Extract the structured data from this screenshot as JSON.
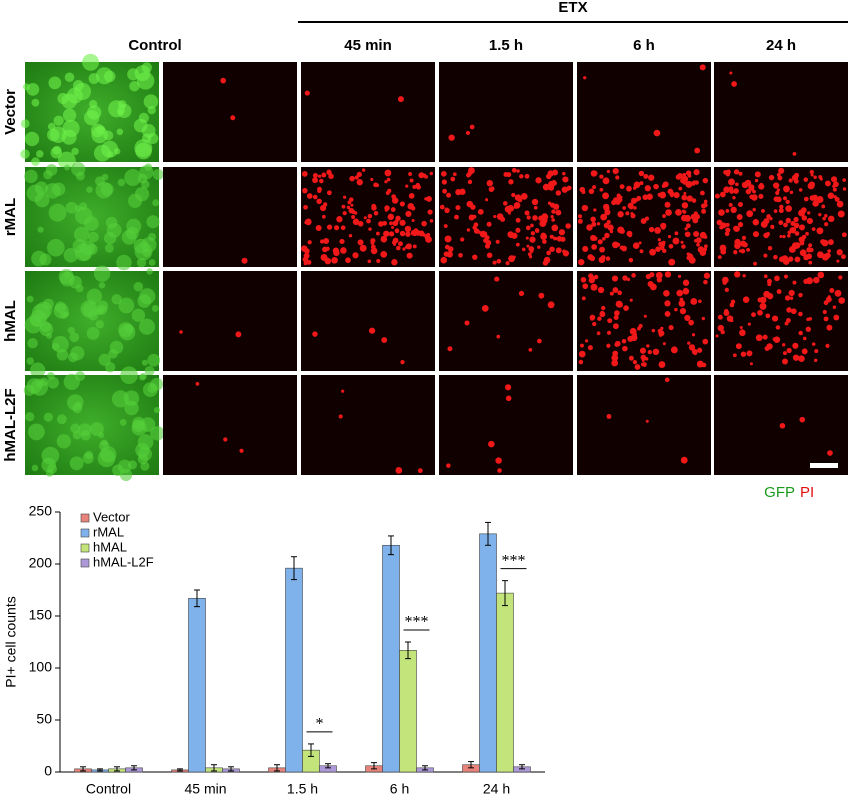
{
  "figure": {
    "treatment_label": "ETX",
    "columns": [
      "Control",
      "45 min",
      "1.5 h",
      "6 h",
      "24 h"
    ],
    "rows": [
      "Vector",
      "rMAL",
      "hMAL",
      "hMAL-L2F"
    ],
    "channel_labels": [
      {
        "text": "GFP",
        "color": "#1a9a1a"
      },
      {
        "text": "PI",
        "color": "#e01010"
      }
    ]
  },
  "chart_data": {
    "type": "bar",
    "ylabel": "PI+ cell counts",
    "categories": [
      "Control",
      "45 min",
      "1.5 h",
      "6 h",
      "24 h"
    ],
    "series": [
      {
        "name": "Vector",
        "color": "#e8837c",
        "values": [
          3,
          2,
          4,
          6,
          7
        ],
        "errors": [
          2,
          1,
          3,
          3,
          3
        ]
      },
      {
        "name": "rMAL",
        "color": "#7fb2ea",
        "values": [
          2,
          167,
          196,
          218,
          229
        ],
        "errors": [
          1,
          8,
          11,
          9,
          11
        ]
      },
      {
        "name": "hMAL",
        "color": "#c3e47a",
        "values": [
          3,
          4,
          21,
          117,
          172
        ],
        "errors": [
          2,
          3,
          6,
          8,
          12
        ]
      },
      {
        "name": "hMAL-L2F",
        "color": "#ad98d8",
        "values": [
          4,
          3,
          6,
          4,
          5
        ],
        "errors": [
          2,
          2,
          2,
          2,
          2
        ]
      }
    ],
    "significance": [
      null,
      null,
      "*",
      "***",
      "***"
    ],
    "ylim": [
      0,
      250
    ],
    "yticks": [
      0,
      50,
      100,
      150,
      200,
      250
    ]
  }
}
